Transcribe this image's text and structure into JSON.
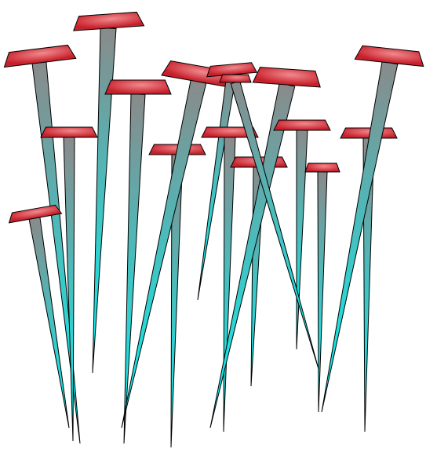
{
  "illustration": {
    "subject": "nails",
    "nail_count": 16,
    "colors": {
      "background": "#ffffff",
      "head_dark": "#c8202b",
      "head_light": "#f08a8e",
      "shank_top": "#8a8a8a",
      "shank_bottom": "#00f6f6",
      "outline": "#000000"
    }
  }
}
